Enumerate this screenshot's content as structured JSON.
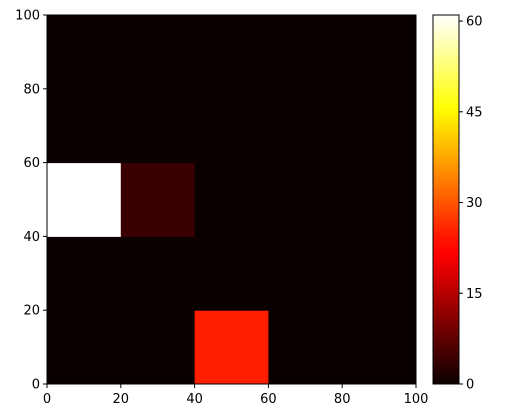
{
  "chart_data": {
    "type": "heatmap",
    "title": "",
    "xlabel": "",
    "ylabel": "",
    "xlim": [
      0,
      100
    ],
    "ylim": [
      0,
      100
    ],
    "x_edges": [
      0,
      20,
      40,
      60,
      80,
      100
    ],
    "y_edges": [
      0,
      20,
      40,
      60,
      80,
      100
    ],
    "x_ticks": [
      0,
      20,
      40,
      60,
      80,
      100
    ],
    "y_ticks": [
      0,
      20,
      40,
      60,
      80,
      100
    ],
    "x_tick_labels": [
      "0",
      "20",
      "40",
      "60",
      "80",
      "100"
    ],
    "y_tick_labels": [
      "0",
      "20",
      "40",
      "60",
      "80",
      "100"
    ],
    "values": [
      [
        0,
        0,
        25,
        0,
        0
      ],
      [
        0,
        0,
        0,
        0,
        0
      ],
      [
        61,
        4,
        0,
        0,
        0
      ],
      [
        0,
        0,
        0,
        0,
        0
      ],
      [
        0,
        0,
        0,
        0,
        0
      ]
    ],
    "colormap": "hot",
    "vmin": 0,
    "vmax": 61,
    "colorbar": {
      "ticks": [
        0,
        15,
        30,
        45,
        60
      ],
      "tick_labels": [
        "0",
        "15",
        "30",
        "45",
        "60"
      ],
      "placement": "right"
    },
    "grid": false
  }
}
